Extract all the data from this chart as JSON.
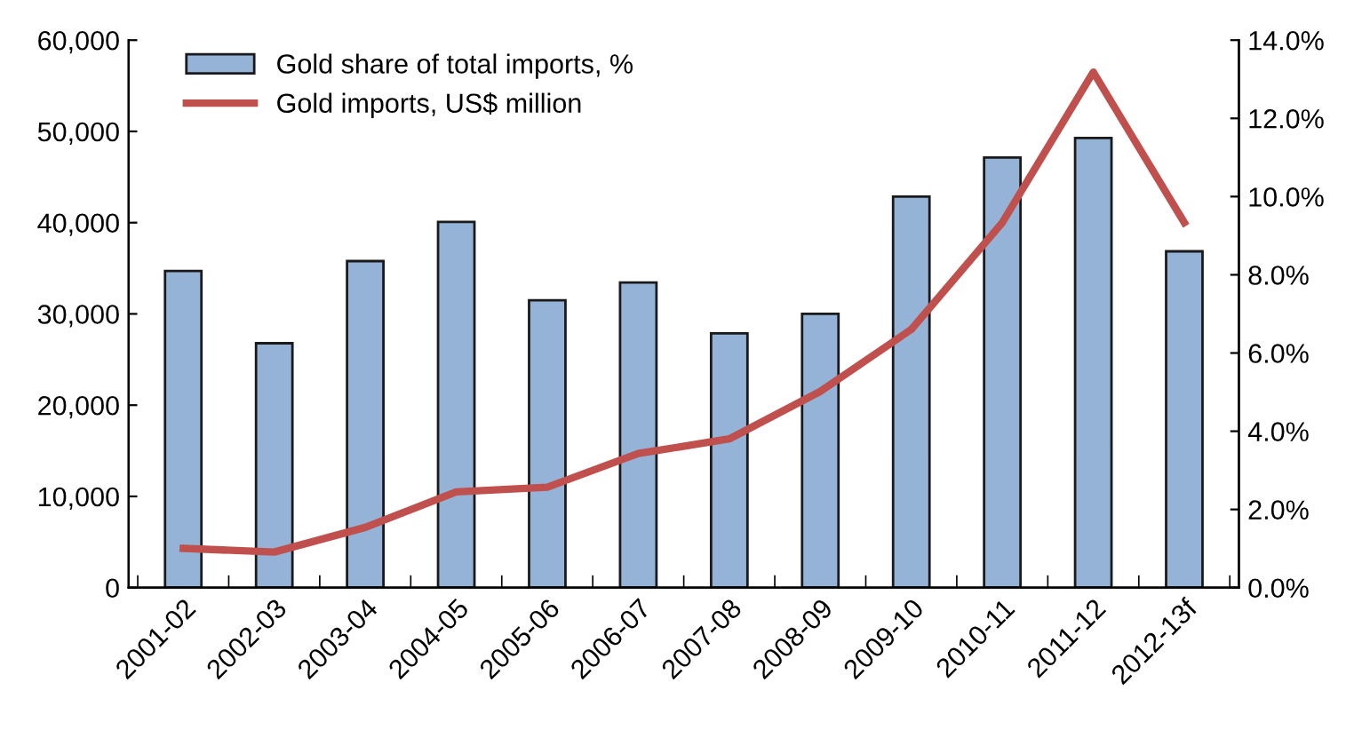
{
  "chart_data": {
    "type": "bar",
    "categories": [
      "2001-02",
      "2002-03",
      "2003-04",
      "2004-05",
      "2005-06",
      "2006-07",
      "2007-08",
      "2008-09",
      "2009-10",
      "2010-11",
      "2011-12",
      "2012-13f"
    ],
    "series": [
      {
        "name": "Gold share of total imports, %",
        "axis": "y2",
        "color": "#95b3d7",
        "values": [
          8.1,
          6.25,
          8.35,
          9.35,
          7.35,
          7.8,
          6.5,
          7.0,
          10.0,
          11.0,
          11.5,
          8.6
        ]
      },
      {
        "name": "Gold imports, US$ million",
        "type": "line",
        "axis": "y",
        "color": "#c0504d",
        "values": [
          4300,
          3900,
          6600,
          10500,
          11000,
          14700,
          16300,
          21500,
          28300,
          40000,
          56500,
          40000
        ]
      }
    ],
    "ylim": [
      0,
      60000
    ],
    "yticks": [
      {
        "value": 0,
        "label": "0"
      },
      {
        "value": 10000,
        "label": "10,000"
      },
      {
        "value": 20000,
        "label": "20,000"
      },
      {
        "value": 30000,
        "label": "30,000"
      },
      {
        "value": 40000,
        "label": "40,000"
      },
      {
        "value": 50000,
        "label": "50,000"
      },
      {
        "value": 60000,
        "label": "60,000"
      }
    ],
    "y2lim": [
      0,
      14
    ],
    "y2ticks": [
      {
        "value": 0,
        "label": "0.0%"
      },
      {
        "value": 2,
        "label": "2.0%"
      },
      {
        "value": 4,
        "label": "4.0%"
      },
      {
        "value": 6,
        "label": "6.0%"
      },
      {
        "value": 8,
        "label": "8.0%"
      },
      {
        "value": 10,
        "label": "10.0%"
      },
      {
        "value": 12,
        "label": "12.0%"
      },
      {
        "value": 14,
        "label": "14.0%"
      }
    ],
    "grid": false,
    "legend": "top left",
    "marker": "none",
    "line_style": "solid"
  }
}
